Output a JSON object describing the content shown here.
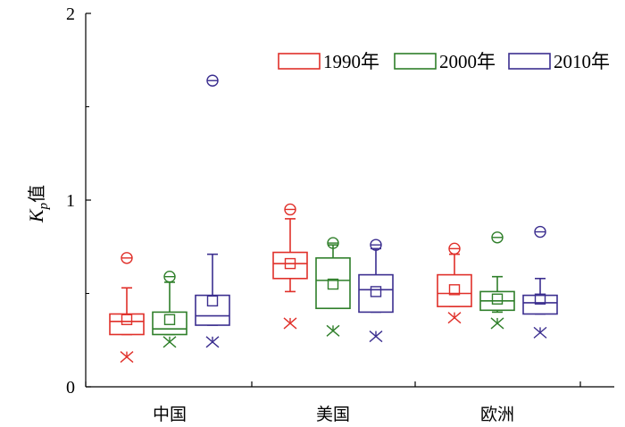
{
  "chart_data": {
    "type": "box",
    "ylabel": {
      "main": "K",
      "sub": "p",
      "suffix": "值"
    },
    "ylim": [
      0,
      2
    ],
    "yticks": [
      "0",
      "1",
      "2"
    ],
    "categories": [
      "中国",
      "美国",
      "欧洲"
    ],
    "legend_position": "top-right",
    "series": [
      {
        "name": "1990年",
        "color": "#e0302a",
        "boxes": [
          {
            "whisker_low": 0.28,
            "q1": 0.28,
            "median": 0.35,
            "q3": 0.39,
            "whisker_high": 0.53,
            "mean": 0.36,
            "outlier_high": 0.69,
            "outlier_low": 0.16
          },
          {
            "whisker_low": 0.51,
            "q1": 0.58,
            "median": 0.66,
            "q3": 0.72,
            "whisker_high": 0.9,
            "mean": 0.66,
            "outlier_high": 0.95,
            "outlier_low": 0.34
          },
          {
            "whisker_low": 0.43,
            "q1": 0.43,
            "median": 0.5,
            "q3": 0.6,
            "whisker_high": 0.71,
            "mean": 0.52,
            "outlier_high": 0.74,
            "outlier_low": 0.37
          }
        ]
      },
      {
        "name": "2000年",
        "color": "#2f7f2a",
        "boxes": [
          {
            "whisker_low": 0.28,
            "q1": 0.28,
            "median": 0.31,
            "q3": 0.4,
            "whisker_high": 0.56,
            "mean": 0.36,
            "outlier_high": 0.59,
            "outlier_low": 0.24
          },
          {
            "whisker_low": 0.42,
            "q1": 0.42,
            "median": 0.57,
            "q3": 0.69,
            "whisker_high": 0.76,
            "mean": 0.55,
            "outlier_high": 0.77,
            "outlier_low": 0.3
          },
          {
            "whisker_low": 0.4,
            "q1": 0.41,
            "median": 0.46,
            "q3": 0.51,
            "whisker_high": 0.59,
            "mean": 0.47,
            "outlier_high": 0.8,
            "outlier_low": 0.34
          }
        ]
      },
      {
        "name": "2010年",
        "color": "#3b2e8f",
        "boxes": [
          {
            "whisker_low": 0.33,
            "q1": 0.33,
            "median": 0.38,
            "q3": 0.49,
            "whisker_high": 0.71,
            "mean": 0.46,
            "outlier_high": 1.64,
            "outlier_low": 0.24
          },
          {
            "whisker_low": 0.4,
            "q1": 0.4,
            "median": 0.52,
            "q3": 0.6,
            "whisker_high": 0.74,
            "mean": 0.51,
            "outlier_high": 0.76,
            "outlier_low": 0.27
          },
          {
            "whisker_low": 0.39,
            "q1": 0.39,
            "median": 0.45,
            "q3": 0.49,
            "whisker_high": 0.58,
            "mean": 0.47,
            "outlier_high": 0.83,
            "outlier_low": 0.29
          }
        ]
      }
    ]
  }
}
